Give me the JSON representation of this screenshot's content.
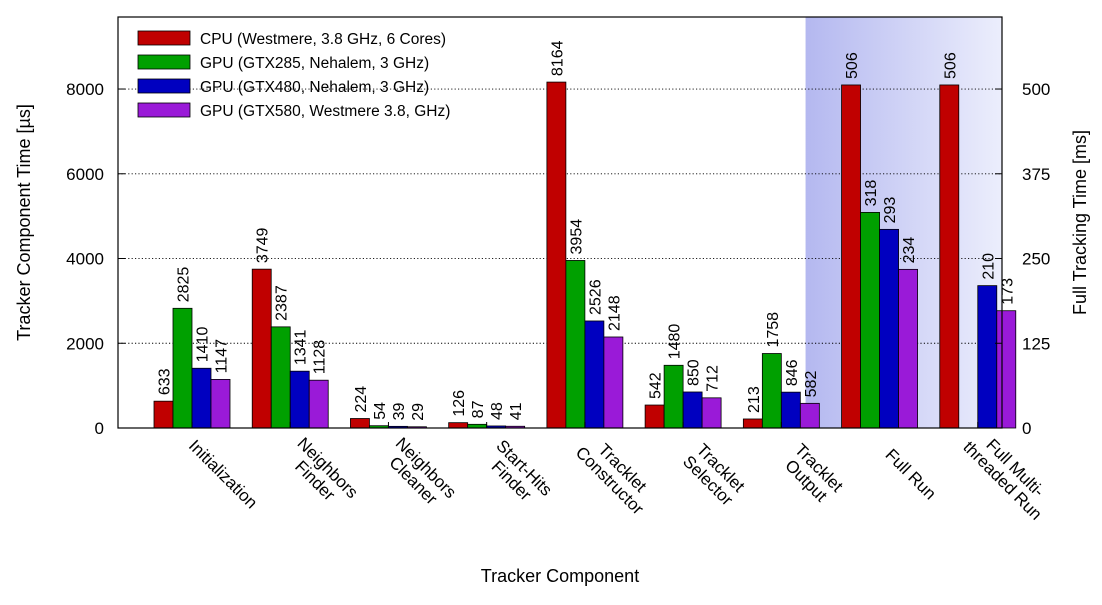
{
  "chart_data": {
    "type": "bar",
    "categories": [
      [
        "Initialization"
      ],
      [
        "Neighbors",
        "Finder"
      ],
      [
        "Neighbors",
        "Cleaner"
      ],
      [
        "Start-Hits",
        "Finder"
      ],
      [
        "Tracklet",
        "Constructor"
      ],
      [
        "Tracklet",
        "Selector"
      ],
      [
        "Tracklet",
        "Output"
      ],
      [
        "Full Run"
      ],
      [
        "Full Multi-",
        "threaded Run"
      ]
    ],
    "series": [
      {
        "name": "CPU (Westmere, 3.8 GHz, 6 Cores)",
        "color": "#c00000",
        "values": [
          633,
          3749,
          224,
          126,
          8164,
          542,
          213,
          506,
          506
        ]
      },
      {
        "name": "GPU (GTX285, Nehalem, 3 GHz)",
        "color": "#00a000",
        "values": [
          2825,
          2387,
          54,
          87,
          3954,
          1480,
          1758,
          318,
          null
        ]
      },
      {
        "name": "GPU (GTX480, Nehalem, 3 GHz)",
        "color": "#0000c0",
        "values": [
          1410,
          1341,
          39,
          48,
          2526,
          850,
          846,
          293,
          210
        ]
      },
      {
        "name": "GPU (GTX580, Westmere 3.8, GHz)",
        "color": "#9a1ad8",
        "values": [
          1147,
          1128,
          29,
          41,
          2148,
          712,
          582,
          234,
          173
        ]
      }
    ],
    "value_axis_note": "First 7 categories in µs on left axis; Full Run and Full Multi-threaded Run in ms on right axis",
    "xlabel": "Tracker Component",
    "ylabel": "Tracker Component Time [µs]",
    "y2label": "Full Tracking Time [ms]",
    "ylim": [
      0,
      9700
    ],
    "y2lim": [
      0,
      606.25
    ],
    "yticks": [
      0,
      2000,
      4000,
      6000,
      8000
    ],
    "y2ticks": [
      0,
      125,
      250,
      375,
      500
    ],
    "grid": "horizontal dotted",
    "legend": "top-left",
    "shaded_region_categories": [
      "Full Run",
      "Full Multi-threaded Run"
    ],
    "shade_color": "#b8bcf2"
  }
}
